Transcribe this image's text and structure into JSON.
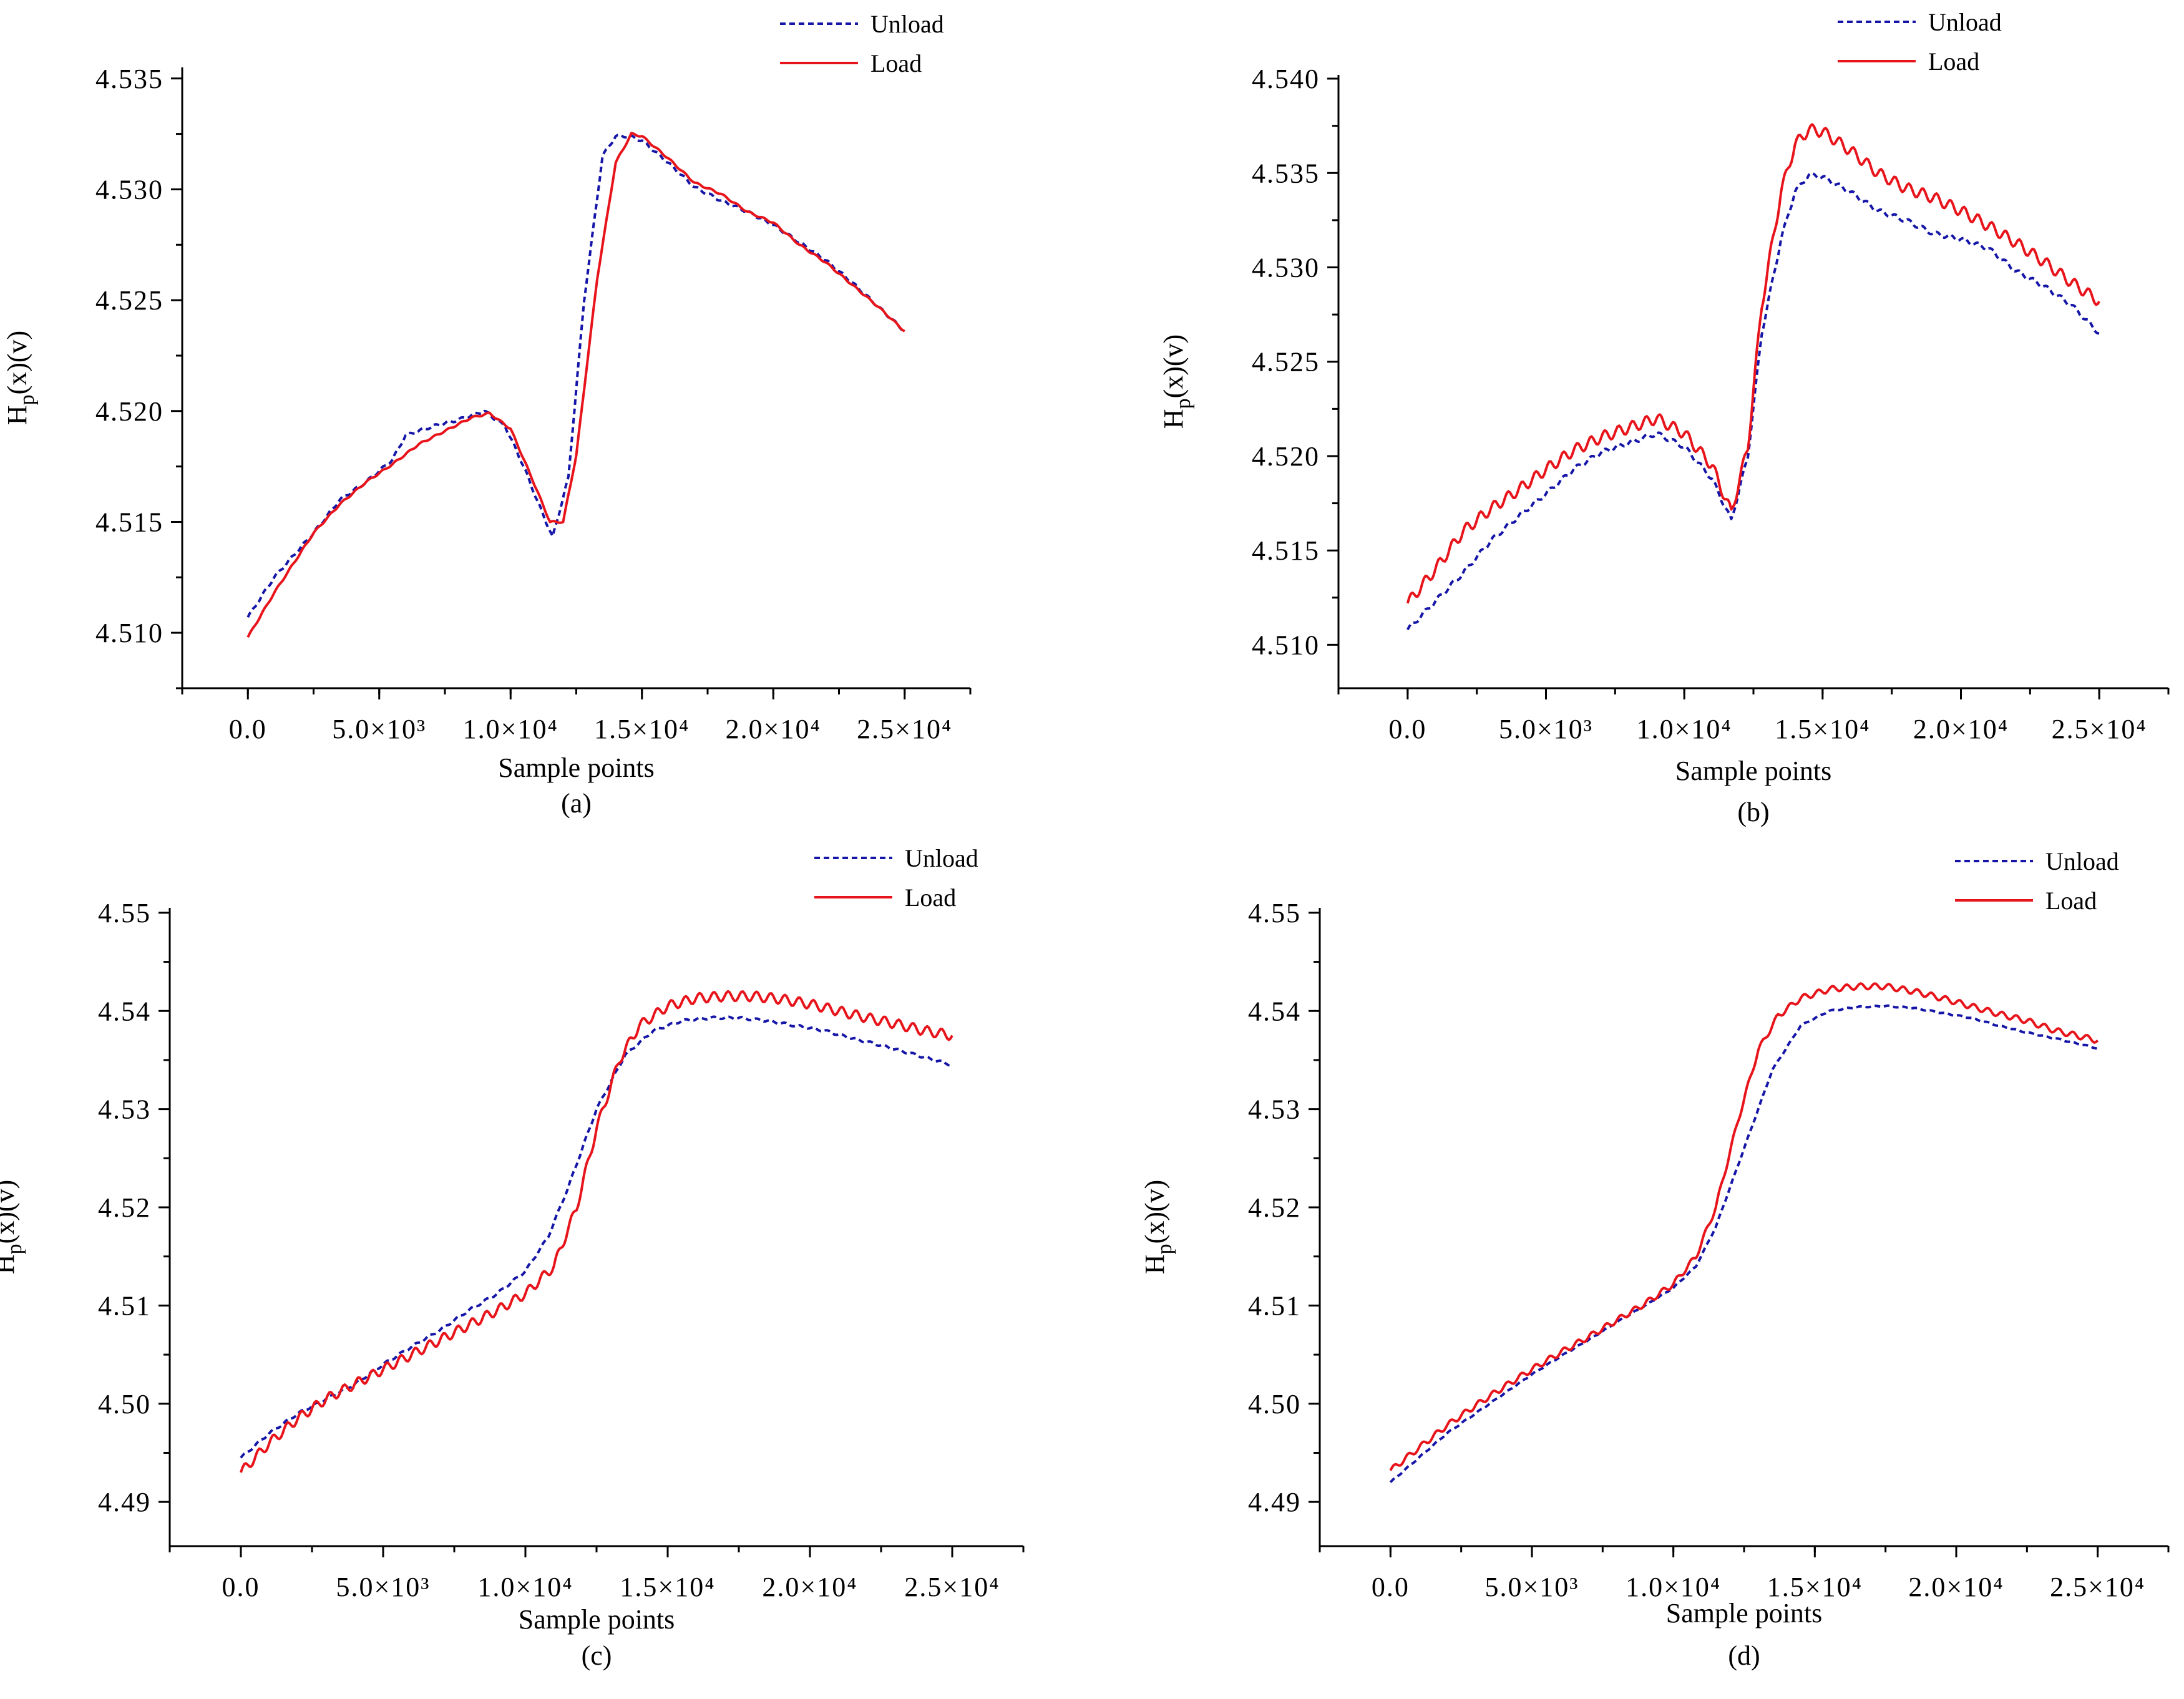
{
  "colors": {
    "unload": "#1515a8",
    "load": "#e8141b",
    "axis": "#000000"
  },
  "chart_data": [
    {
      "type": "line",
      "caption": "(a)",
      "xlabel": "Sample points",
      "ylabel": "Hp(x)(v)",
      "xlim": [
        -2500,
        27500
      ],
      "ylim": [
        4.5075,
        4.5355
      ],
      "x_ticks": [
        0,
        5000,
        10000,
        15000,
        20000,
        25000
      ],
      "x_tick_labels": [
        "0.0",
        "5.0×10³",
        "1.0×10⁴",
        "1.5×10⁴",
        "2.0×10⁴",
        "2.5×10⁴"
      ],
      "y_ticks": [
        4.51,
        4.515,
        4.52,
        4.525,
        4.53,
        4.535
      ],
      "y_tick_labels": [
        "4.510",
        "4.515",
        "4.520",
        "4.525",
        "4.530",
        "4.535"
      ],
      "legend": [
        "Unload",
        "Load"
      ],
      "series": [
        {
          "name": "Unload",
          "ripple": 6e-05,
          "x": [
            0,
            1000,
            2500,
            3500,
            4500,
            5500,
            6000,
            7000,
            8000,
            9000,
            9800,
            10500,
            11000,
            11600,
            12200,
            12800,
            13500,
            14000,
            14500,
            15000,
            16000,
            17000,
            18000,
            19000,
            20000,
            21000,
            22000,
            23000,
            24000,
            25000
          ],
          "y": [
            4.5107,
            4.5125,
            4.5145,
            4.516,
            4.5168,
            4.5178,
            4.5189,
            4.5193,
            4.5196,
            4.52,
            4.5193,
            4.5175,
            4.516,
            4.5143,
            4.517,
            4.525,
            4.5315,
            4.5324,
            4.5324,
            4.5322,
            4.5312,
            4.5301,
            4.5295,
            4.529,
            4.5284,
            4.5276,
            4.5268,
            4.5258,
            4.5247,
            4.5236
          ]
        },
        {
          "name": "Load",
          "ripple": 4e-05,
          "x": [
            0,
            1000,
            2500,
            3500,
            4500,
            5500,
            6500,
            7500,
            8500,
            9200,
            10000,
            10800,
            11500,
            12000,
            12500,
            13300,
            14000,
            14600,
            15000,
            16000,
            17000,
            18000,
            19000,
            20000,
            21000,
            22000,
            23000,
            24000,
            25000
          ],
          "y": [
            4.5098,
            4.5118,
            4.5145,
            4.5158,
            4.5168,
            4.5176,
            4.5185,
            4.5191,
            4.5197,
            4.5199,
            4.5192,
            4.517,
            4.515,
            4.515,
            4.518,
            4.526,
            4.5312,
            4.5325,
            4.5324,
            4.5314,
            4.5303,
            4.5298,
            4.529,
            4.5285,
            4.5275,
            4.5267,
            4.5257,
            4.5247,
            4.5236
          ]
        }
      ]
    },
    {
      "type": "line",
      "caption": "(b)",
      "xlabel": "Sample points",
      "ylabel": "Hp(x)(v)",
      "xlim": [
        -2500,
        27500
      ],
      "ylim": [
        4.5077,
        4.5402
      ],
      "x_ticks": [
        0,
        5000,
        10000,
        15000,
        20000,
        25000
      ],
      "x_tick_labels": [
        "0.0",
        "5.0×10³",
        "1.0×10⁴",
        "1.5×10⁴",
        "2.0×10⁴",
        "2.5×10⁴"
      ],
      "y_ticks": [
        4.51,
        4.515,
        4.52,
        4.525,
        4.53,
        4.535,
        4.54
      ],
      "y_tick_labels": [
        "4.510",
        "4.515",
        "4.520",
        "4.525",
        "4.530",
        "4.535",
        "4.540"
      ],
      "legend": [
        "Unload",
        "Load"
      ],
      "series": [
        {
          "name": "Unload",
          "ripple": 0.00012,
          "x": [
            0,
            1000,
            2000,
            3000,
            4000,
            5000,
            6000,
            7000,
            8000,
            9000,
            10000,
            11000,
            11700,
            12300,
            12800,
            13500,
            14000,
            14500,
            15000,
            16000,
            17000,
            18000,
            19000,
            20000,
            21000,
            22000,
            23000,
            24000,
            25000
          ],
          "y": [
            4.5108,
            4.5123,
            4.5138,
            4.5155,
            4.5168,
            4.518,
            4.5193,
            4.5202,
            4.5207,
            4.5212,
            4.5205,
            4.5188,
            4.5166,
            4.52,
            4.5265,
            4.5315,
            4.534,
            4.5349,
            4.5348,
            4.534,
            4.533,
            4.5325,
            4.5318,
            4.5315,
            4.531,
            4.5298,
            4.529,
            4.528,
            4.5265
          ]
        },
        {
          "name": "Load",
          "ripple": 0.0003,
          "x": [
            0,
            1000,
            2000,
            3000,
            4000,
            5000,
            6000,
            7000,
            8000,
            9000,
            10000,
            11000,
            11700,
            12300,
            12800,
            13500,
            14000,
            14500,
            15000,
            16000,
            17000,
            18000,
            19000,
            20000,
            21000,
            22000,
            23000,
            24000,
            25000
          ],
          "y": [
            4.5122,
            4.514,
            4.516,
            4.5172,
            4.5182,
            4.5193,
            4.5203,
            4.521,
            4.5215,
            4.522,
            4.5212,
            4.5195,
            4.517,
            4.5205,
            4.528,
            4.534,
            4.5365,
            4.5373,
            4.5372,
            4.5362,
            4.535,
            4.5342,
            4.5337,
            4.533,
            4.5322,
            4.5313,
            4.5303,
            4.5292,
            4.5282
          ]
        }
      ]
    },
    {
      "type": "line",
      "caption": "(c)",
      "xlabel": "Sample points",
      "ylabel": "Hp(x)(v)",
      "xlim": [
        -2500,
        27500
      ],
      "ylim": [
        4.4855,
        4.5505
      ],
      "x_ticks": [
        0,
        5000,
        10000,
        15000,
        20000,
        25000
      ],
      "x_tick_labels": [
        "0.0",
        "5.0×10³",
        "1.0×10⁴",
        "1.5×10⁴",
        "2.0×10⁴",
        "2.5×10⁴"
      ],
      "y_ticks": [
        4.49,
        4.5,
        4.51,
        4.52,
        4.53,
        4.54,
        4.55
      ],
      "y_tick_labels": [
        "4.49",
        "4.50",
        "4.51",
        "4.52",
        "4.53",
        "4.54",
        "4.55"
      ],
      "legend": [
        "Unload",
        "Load"
      ],
      "series": [
        {
          "name": "Unload",
          "ripple": 0.00012,
          "x": [
            0,
            1000,
            2000,
            3000,
            4000,
            5000,
            6000,
            7000,
            8000,
            9000,
            10000,
            10800,
            11500,
            12500,
            13500,
            14500,
            15500,
            16500,
            17500,
            18500,
            19500,
            20500,
            21500,
            22500,
            23500,
            25000
          ],
          "y": [
            4.4945,
            4.497,
            4.499,
            4.5005,
            4.502,
            4.504,
            4.5058,
            4.5075,
            4.5095,
            4.5112,
            4.5135,
            4.517,
            4.522,
            4.53,
            4.5355,
            4.538,
            4.539,
            4.5393,
            4.5393,
            4.539,
            4.5385,
            4.538,
            4.5372,
            4.5365,
            4.5357,
            4.5345
          ]
        },
        {
          "name": "Load",
          "ripple": 0.0005,
          "x": [
            0,
            1000,
            2000,
            3000,
            4000,
            5000,
            6000,
            7000,
            8000,
            9000,
            10000,
            11000,
            11800,
            12500,
            13300,
            14000,
            15000,
            16000,
            17000,
            18000,
            19000,
            20000,
            21000,
            22000,
            23000,
            24000,
            25000
          ],
          "y": [
            4.493,
            4.496,
            4.4985,
            4.5005,
            4.502,
            4.5035,
            4.505,
            4.5065,
            4.508,
            4.5095,
            4.5112,
            4.514,
            4.52,
            4.528,
            4.535,
            4.5385,
            4.5405,
            4.5413,
            4.5415,
            4.5415,
            4.5412,
            4.5407,
            4.54,
            4.5393,
            4.5387,
            4.538,
            4.5375
          ]
        }
      ]
    },
    {
      "type": "line",
      "caption": "(d)",
      "xlabel": "Sample points",
      "ylabel": "Hp(x)(v)",
      "xlim": [
        -2500,
        27500
      ],
      "ylim": [
        4.4855,
        4.5505
      ],
      "x_ticks": [
        0,
        5000,
        10000,
        15000,
        20000,
        25000
      ],
      "x_tick_labels": [
        "0.0",
        "5.0×10³",
        "1.0×10⁴",
        "1.5×10⁴",
        "2.0×10⁴",
        "2.5×10⁴"
      ],
      "y_ticks": [
        4.49,
        4.5,
        4.51,
        4.52,
        4.53,
        4.54,
        4.55
      ],
      "y_tick_labels": [
        "4.49",
        "4.50",
        "4.51",
        "4.52",
        "4.53",
        "4.54",
        "4.55"
      ],
      "legend": [
        "Unload",
        "Load"
      ],
      "series": [
        {
          "name": "Unload",
          "ripple": 6e-05,
          "x": [
            0,
            1000,
            2000,
            3000,
            4000,
            5000,
            6000,
            7000,
            8000,
            9000,
            10000,
            10800,
            11500,
            12500,
            13500,
            14500,
            15500,
            16500,
            17500,
            18500,
            19500,
            20500,
            21500,
            22500,
            23500,
            25000
          ],
          "y": [
            4.492,
            4.4945,
            4.497,
            4.499,
            4.501,
            4.503,
            4.5048,
            4.5065,
            4.5083,
            4.51,
            4.5118,
            4.514,
            4.518,
            4.526,
            4.534,
            4.5385,
            4.54,
            4.5404,
            4.5405,
            4.5403,
            4.5398,
            4.5393,
            4.5385,
            4.5378,
            4.5372,
            4.5362
          ]
        },
        {
          "name": "Load",
          "ripple": 0.0003,
          "x": [
            0,
            1000,
            2000,
            3000,
            4000,
            5000,
            6000,
            7000,
            8000,
            9000,
            10000,
            10800,
            11500,
            12300,
            13000,
            13700,
            14500,
            15500,
            16500,
            17500,
            18500,
            19500,
            20500,
            21500,
            22500,
            23500,
            25000
          ],
          "y": [
            4.4932,
            4.4955,
            4.4978,
            4.4998,
            4.5017,
            4.5035,
            4.5052,
            4.5068,
            4.5085,
            4.5102,
            4.5122,
            4.515,
            4.52,
            4.529,
            4.536,
            4.5395,
            4.5413,
            4.5422,
            4.5425,
            4.5425,
            4.542,
            4.5413,
            4.5405,
            4.5397,
            4.539,
            4.538,
            4.537
          ]
        }
      ]
    }
  ]
}
